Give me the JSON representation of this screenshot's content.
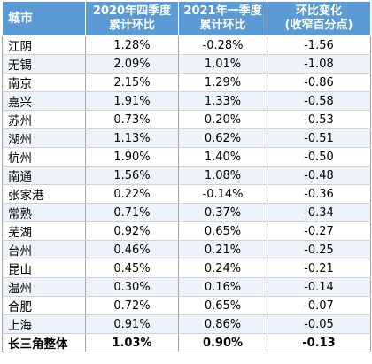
{
  "headers": {
    "city": "城市",
    "q4_line1": "2020年四季度",
    "q4_line2": "累计环比",
    "q1_line1": "2021年一季度",
    "q1_line2": "累计环比",
    "chg_line1": "环比变化",
    "chg_line2": "(收窄百分点)"
  },
  "rows": [
    {
      "city": "江阴",
      "q4_2020": "1.28%",
      "q1_2021": "-0.28%",
      "change": "-1.56"
    },
    {
      "city": "无锡",
      "q4_2020": "2.09%",
      "q1_2021": "1.01%",
      "change": "-1.08"
    },
    {
      "city": "南京",
      "q4_2020": "2.15%",
      "q1_2021": "1.29%",
      "change": "-0.86"
    },
    {
      "city": "嘉兴",
      "q4_2020": "1.91%",
      "q1_2021": "1.33%",
      "change": "-0.58"
    },
    {
      "city": "苏州",
      "q4_2020": "0.73%",
      "q1_2021": "0.20%",
      "change": "-0.53"
    },
    {
      "city": "湖州",
      "q4_2020": "1.13%",
      "q1_2021": "0.62%",
      "change": "-0.51"
    },
    {
      "city": "杭州",
      "q4_2020": "1.90%",
      "q1_2021": "1.40%",
      "change": "-0.50"
    },
    {
      "city": "南通",
      "q4_2020": "1.56%",
      "q1_2021": "1.08%",
      "change": "-0.48"
    },
    {
      "city": "张家港",
      "q4_2020": "0.22%",
      "q1_2021": "-0.14%",
      "change": "-0.36"
    },
    {
      "city": "常熟",
      "q4_2020": "0.71%",
      "q1_2021": "0.37%",
      "change": "-0.34"
    },
    {
      "city": "芜湖",
      "q4_2020": "0.92%",
      "q1_2021": "0.65%",
      "change": "-0.27"
    },
    {
      "city": "台州",
      "q4_2020": "0.46%",
      "q1_2021": "0.21%",
      "change": "-0.25"
    },
    {
      "city": "昆山",
      "q4_2020": "0.45%",
      "q1_2021": "0.24%",
      "change": "-0.21"
    },
    {
      "city": "温州",
      "q4_2020": "0.30%",
      "q1_2021": "0.16%",
      "change": "-0.14"
    },
    {
      "city": "合肥",
      "q4_2020": "0.72%",
      "q1_2021": "0.65%",
      "change": "-0.07"
    },
    {
      "city": "上海",
      "q4_2020": "0.91%",
      "q1_2021": "0.86%",
      "change": "-0.05"
    }
  ],
  "total": {
    "city": "长三角整体",
    "q4_2020": "1.03%",
    "q1_2021": "0.90%",
    "change": "-0.13"
  },
  "colors": {
    "header_bg": "#5b9bd5",
    "header_text": "#ffffff",
    "stripe": "#eef3fa"
  }
}
